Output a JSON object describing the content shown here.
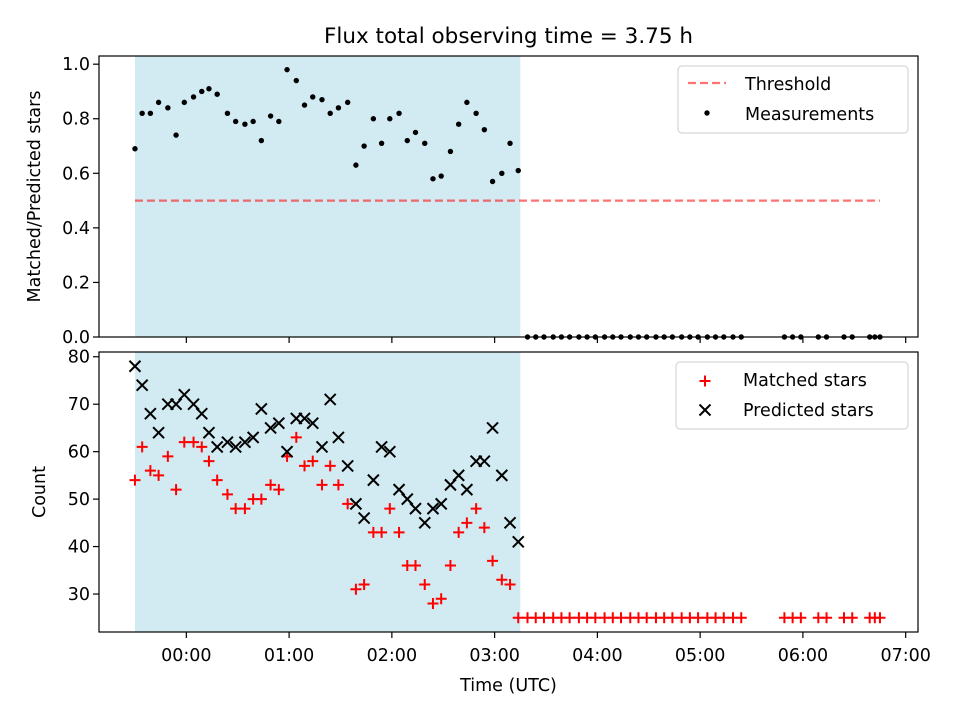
{
  "figure": {
    "title": "Flux total observing time = 3.75 h",
    "xlabel": "Time (UTC)",
    "xticks": [
      {
        "h": 0,
        "label": "00:00"
      },
      {
        "h": 1,
        "label": "01:00"
      },
      {
        "h": 2,
        "label": "02:00"
      },
      {
        "h": 3,
        "label": "03:00"
      },
      {
        "h": 4,
        "label": "04:00"
      },
      {
        "h": 5,
        "label": "05:00"
      },
      {
        "h": 6,
        "label": "06:00"
      },
      {
        "h": 7,
        "label": "07:00"
      }
    ],
    "xlim_hours": [
      -0.85,
      7.12
    ],
    "observing_span_hours": [
      -0.5,
      3.25
    ],
    "colors": {
      "span": "#add8e6",
      "threshold": "#ff0000",
      "measurements": "#000000",
      "matched": "#ff0000",
      "predicted": "#000000"
    }
  },
  "chart_data": [
    {
      "type": "scatter",
      "ylabel": "Matched/Predicted stars",
      "ylim": [
        0,
        1.03
      ],
      "yticks": [
        "0.0",
        "0.2",
        "0.4",
        "0.6",
        "0.8",
        "1.0"
      ],
      "legend_position": "top-right",
      "threshold": {
        "name": "Threshold",
        "value": 0.5,
        "x_range": [
          -0.5,
          6.75
        ]
      },
      "series": [
        {
          "name": "Measurements",
          "points": [
            [
              -0.5,
              0.69
            ],
            [
              -0.43,
              0.82
            ],
            [
              -0.35,
              0.82
            ],
            [
              -0.27,
              0.86
            ],
            [
              -0.18,
              0.84
            ],
            [
              -0.1,
              0.74
            ],
            [
              -0.02,
              0.86
            ],
            [
              0.07,
              0.88
            ],
            [
              0.15,
              0.9
            ],
            [
              0.22,
              0.91
            ],
            [
              0.3,
              0.89
            ],
            [
              0.4,
              0.82
            ],
            [
              0.48,
              0.79
            ],
            [
              0.57,
              0.78
            ],
            [
              0.65,
              0.79
            ],
            [
              0.73,
              0.72
            ],
            [
              0.82,
              0.81
            ],
            [
              0.9,
              0.79
            ],
            [
              0.98,
              0.98
            ],
            [
              1.07,
              0.94
            ],
            [
              1.15,
              0.85
            ],
            [
              1.23,
              0.88
            ],
            [
              1.32,
              0.87
            ],
            [
              1.4,
              0.82
            ],
            [
              1.48,
              0.84
            ],
            [
              1.57,
              0.86
            ],
            [
              1.65,
              0.63
            ],
            [
              1.73,
              0.7
            ],
            [
              1.82,
              0.8
            ],
            [
              1.9,
              0.71
            ],
            [
              1.98,
              0.8
            ],
            [
              2.07,
              0.82
            ],
            [
              2.15,
              0.72
            ],
            [
              2.23,
              0.75
            ],
            [
              2.32,
              0.71
            ],
            [
              2.4,
              0.58
            ],
            [
              2.48,
              0.59
            ],
            [
              2.57,
              0.68
            ],
            [
              2.65,
              0.78
            ],
            [
              2.73,
              0.86
            ],
            [
              2.82,
              0.82
            ],
            [
              2.9,
              0.76
            ],
            [
              2.98,
              0.57
            ],
            [
              3.07,
              0.6
            ],
            [
              3.15,
              0.71
            ],
            [
              3.23,
              0.61
            ],
            [
              3.32,
              0.0
            ],
            [
              3.4,
              0.0
            ],
            [
              3.48,
              0.0
            ],
            [
              3.57,
              0.0
            ],
            [
              3.65,
              0.0
            ],
            [
              3.73,
              0.0
            ],
            [
              3.82,
              0.0
            ],
            [
              3.9,
              0.0
            ],
            [
              3.98,
              0.0
            ],
            [
              4.07,
              0.0
            ],
            [
              4.15,
              0.0
            ],
            [
              4.23,
              0.0
            ],
            [
              4.32,
              0.0
            ],
            [
              4.4,
              0.0
            ],
            [
              4.48,
              0.0
            ],
            [
              4.57,
              0.0
            ],
            [
              4.65,
              0.0
            ],
            [
              4.73,
              0.0
            ],
            [
              4.82,
              0.0
            ],
            [
              4.9,
              0.0
            ],
            [
              4.98,
              0.0
            ],
            [
              5.07,
              0.0
            ],
            [
              5.15,
              0.0
            ],
            [
              5.23,
              0.0
            ],
            [
              5.32,
              0.0
            ],
            [
              5.4,
              0.0
            ],
            [
              5.82,
              0.0
            ],
            [
              5.9,
              0.0
            ],
            [
              5.98,
              0.0
            ],
            [
              6.15,
              0.0
            ],
            [
              6.23,
              0.0
            ],
            [
              6.4,
              0.0
            ],
            [
              6.48,
              0.0
            ],
            [
              6.65,
              0.0
            ],
            [
              6.7,
              0.0
            ],
            [
              6.75,
              0.0
            ]
          ]
        }
      ]
    },
    {
      "type": "scatter",
      "ylabel": "Count",
      "ylim": [
        22,
        81
      ],
      "yticks": [
        "30",
        "40",
        "50",
        "60",
        "70",
        "80"
      ],
      "legend_position": "top-right",
      "series": [
        {
          "name": "Matched stars",
          "marker": "plus",
          "points": [
            [
              -0.5,
              54
            ],
            [
              -0.43,
              61
            ],
            [
              -0.35,
              56
            ],
            [
              -0.27,
              55
            ],
            [
              -0.18,
              59
            ],
            [
              -0.1,
              52
            ],
            [
              -0.02,
              62
            ],
            [
              0.07,
              62
            ],
            [
              0.15,
              61
            ],
            [
              0.22,
              58
            ],
            [
              0.3,
              54
            ],
            [
              0.4,
              51
            ],
            [
              0.48,
              48
            ],
            [
              0.57,
              48
            ],
            [
              0.65,
              50
            ],
            [
              0.73,
              50
            ],
            [
              0.82,
              53
            ],
            [
              0.9,
              52
            ],
            [
              0.98,
              59
            ],
            [
              1.07,
              63
            ],
            [
              1.15,
              57
            ],
            [
              1.23,
              58
            ],
            [
              1.32,
              53
            ],
            [
              1.4,
              57
            ],
            [
              1.48,
              53
            ],
            [
              1.57,
              49
            ],
            [
              1.65,
              31
            ],
            [
              1.73,
              32
            ],
            [
              1.82,
              43
            ],
            [
              1.9,
              43
            ],
            [
              1.98,
              48
            ],
            [
              2.07,
              43
            ],
            [
              2.15,
              36
            ],
            [
              2.23,
              36
            ],
            [
              2.32,
              32
            ],
            [
              2.4,
              28
            ],
            [
              2.48,
              29
            ],
            [
              2.57,
              36
            ],
            [
              2.65,
              43
            ],
            [
              2.73,
              45
            ],
            [
              2.82,
              48
            ],
            [
              2.9,
              44
            ],
            [
              2.98,
              37
            ],
            [
              3.07,
              33
            ],
            [
              3.15,
              32
            ],
            [
              3.23,
              25
            ],
            [
              3.32,
              25
            ],
            [
              3.4,
              25
            ],
            [
              3.48,
              25
            ],
            [
              3.57,
              25
            ],
            [
              3.65,
              25
            ],
            [
              3.73,
              25
            ],
            [
              3.82,
              25
            ],
            [
              3.9,
              25
            ],
            [
              3.98,
              25
            ],
            [
              4.07,
              25
            ],
            [
              4.15,
              25
            ],
            [
              4.23,
              25
            ],
            [
              4.32,
              25
            ],
            [
              4.4,
              25
            ],
            [
              4.48,
              25
            ],
            [
              4.57,
              25
            ],
            [
              4.65,
              25
            ],
            [
              4.73,
              25
            ],
            [
              4.82,
              25
            ],
            [
              4.9,
              25
            ],
            [
              4.98,
              25
            ],
            [
              5.07,
              25
            ],
            [
              5.15,
              25
            ],
            [
              5.23,
              25
            ],
            [
              5.32,
              25
            ],
            [
              5.4,
              25
            ],
            [
              5.82,
              25
            ],
            [
              5.9,
              25
            ],
            [
              5.98,
              25
            ],
            [
              6.15,
              25
            ],
            [
              6.23,
              25
            ],
            [
              6.4,
              25
            ],
            [
              6.48,
              25
            ],
            [
              6.65,
              25
            ],
            [
              6.7,
              25
            ],
            [
              6.75,
              25
            ]
          ]
        },
        {
          "name": "Predicted stars",
          "marker": "x",
          "points": [
            [
              -0.5,
              78
            ],
            [
              -0.43,
              74
            ],
            [
              -0.35,
              68
            ],
            [
              -0.27,
              64
            ],
            [
              -0.18,
              70
            ],
            [
              -0.1,
              70
            ],
            [
              -0.02,
              72
            ],
            [
              0.07,
              70
            ],
            [
              0.15,
              68
            ],
            [
              0.22,
              64
            ],
            [
              0.3,
              61
            ],
            [
              0.4,
              62
            ],
            [
              0.48,
              61
            ],
            [
              0.57,
              62
            ],
            [
              0.65,
              63
            ],
            [
              0.73,
              69
            ],
            [
              0.82,
              65
            ],
            [
              0.9,
              66
            ],
            [
              0.98,
              60
            ],
            [
              1.07,
              67
            ],
            [
              1.15,
              67
            ],
            [
              1.23,
              66
            ],
            [
              1.32,
              61
            ],
            [
              1.4,
              71
            ],
            [
              1.48,
              63
            ],
            [
              1.57,
              57
            ],
            [
              1.65,
              49
            ],
            [
              1.73,
              46
            ],
            [
              1.82,
              54
            ],
            [
              1.9,
              61
            ],
            [
              1.98,
              60
            ],
            [
              2.07,
              52
            ],
            [
              2.15,
              50
            ],
            [
              2.23,
              48
            ],
            [
              2.32,
              45
            ],
            [
              2.4,
              48
            ],
            [
              2.48,
              49
            ],
            [
              2.57,
              53
            ],
            [
              2.65,
              55
            ],
            [
              2.73,
              52
            ],
            [
              2.82,
              58
            ],
            [
              2.9,
              58
            ],
            [
              2.98,
              65
            ],
            [
              3.07,
              55
            ],
            [
              3.15,
              45
            ],
            [
              3.23,
              41
            ]
          ]
        }
      ]
    }
  ]
}
